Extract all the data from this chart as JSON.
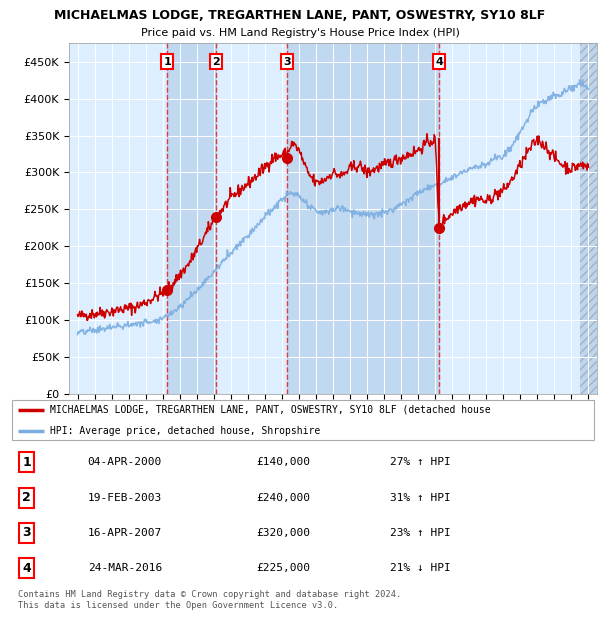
{
  "title": "MICHAELMAS LODGE, TREGARTHEN LANE, PANT, OSWESTRY, SY10 8LF",
  "subtitle": "Price paid vs. HM Land Registry's House Price Index (HPI)",
  "sale_dates_num": [
    2000.26,
    2003.13,
    2007.29,
    2016.23
  ],
  "sale_prices": [
    140000,
    240000,
    320000,
    225000
  ],
  "sale_labels": [
    "1",
    "2",
    "3",
    "4"
  ],
  "hpi_pct": [
    27,
    31,
    23,
    21
  ],
  "hpi_dir": [
    "↑",
    "↑",
    "↑",
    "↓"
  ],
  "sale_date_str": [
    "04-APR-2000",
    "19-FEB-2003",
    "16-APR-2007",
    "24-MAR-2016"
  ],
  "sale_price_str": [
    "£140,000",
    "£240,000",
    "£320,000",
    "£225,000"
  ],
  "ylabel_ticks": [
    0,
    50000,
    100000,
    150000,
    200000,
    250000,
    300000,
    350000,
    400000,
    450000
  ],
  "ylabel_labels": [
    "£0",
    "£50K",
    "£100K",
    "£150K",
    "£200K",
    "£250K",
    "£300K",
    "£350K",
    "£400K",
    "£450K"
  ],
  "xlim": [
    1994.5,
    2025.5
  ],
  "ylim": [
    0,
    475000
  ],
  "legend_line1": "MICHAELMAS LODGE, TREGARTHEN LANE, PANT, OSWESTRY, SY10 8LF (detached house",
  "legend_line2": "HPI: Average price, detached house, Shropshire",
  "footer1": "Contains HM Land Registry data © Crown copyright and database right 2024.",
  "footer2": "This data is licensed under the Open Government Licence v3.0.",
  "red_color": "#cc0000",
  "blue_color": "#7aade0",
  "bg_plot_color": "#ddeeff",
  "bg_shade_color": "#c0d8f0",
  "grid_color": "#ffffff",
  "dashed_line_color": "#dd2222"
}
